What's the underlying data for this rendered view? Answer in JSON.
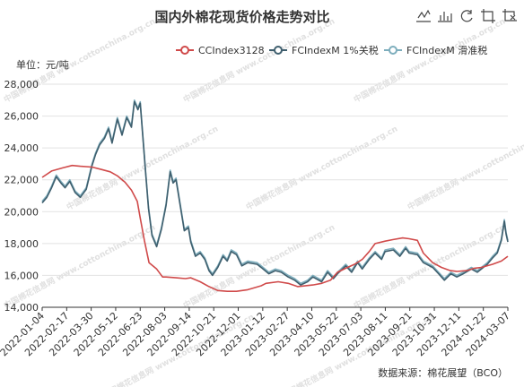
{
  "chart_data": {
    "type": "line",
    "title": "国内外棉花现货价格走势对比",
    "ylabel": "单位：元/吨",
    "ylim": [
      14000,
      28000
    ],
    "yticks": [
      14000,
      16000,
      18000,
      20000,
      22000,
      24000,
      26000,
      28000
    ],
    "ytick_labels": [
      "14,000",
      "16,000",
      "18,000",
      "20,000",
      "22,000",
      "24,000",
      "26,000",
      "28,000"
    ],
    "x_start": "2022-01-04",
    "x_end": "2024-03-07",
    "xtick_labels": [
      "2022-01-04",
      "2022-02-17",
      "2022-03-30",
      "2022-05-12",
      "2022-06-23",
      "2022-08-03",
      "2022-09-14",
      "2022-10-21",
      "2022-12-01",
      "2023-01-12",
      "2023-02-27",
      "2023-04-10",
      "2023-05-22",
      "2023-07-03",
      "2023-08-11",
      "2023-09-21",
      "2023-10-31",
      "2023-12-11",
      "2024-01-22",
      "2024-03-07"
    ],
    "grid": true,
    "legend_position": "top-right",
    "source": "数据来源：棉花展望（BCO）",
    "watermark": "中国棉花信息网 www.cottonchina.org.cn",
    "series": [
      {
        "name": "CCIndex3128",
        "color": "#d04a4a",
        "points": [
          [
            "2022-01-04",
            22150
          ],
          [
            "2022-01-20",
            22550
          ],
          [
            "2022-02-08",
            22750
          ],
          [
            "2022-02-24",
            22900
          ],
          [
            "2022-03-10",
            22850
          ],
          [
            "2022-03-30",
            22800
          ],
          [
            "2022-04-15",
            22650
          ],
          [
            "2022-04-30",
            22500
          ],
          [
            "2022-05-12",
            22250
          ],
          [
            "2022-05-25",
            21850
          ],
          [
            "2022-06-05",
            21350
          ],
          [
            "2022-06-15",
            20650
          ],
          [
            "2022-06-20",
            19600
          ],
          [
            "2022-06-27",
            18200
          ],
          [
            "2022-07-05",
            16800
          ],
          [
            "2022-07-18",
            16400
          ],
          [
            "2022-07-28",
            15900
          ],
          [
            "2022-08-03",
            15900
          ],
          [
            "2022-08-20",
            15850
          ],
          [
            "2022-09-05",
            15800
          ],
          [
            "2022-09-14",
            15850
          ],
          [
            "2022-09-30",
            15600
          ],
          [
            "2022-10-15",
            15300
          ],
          [
            "2022-10-30",
            15050
          ],
          [
            "2022-11-15",
            15000
          ],
          [
            "2022-12-01",
            15000
          ],
          [
            "2022-12-20",
            15100
          ],
          [
            "2023-01-12",
            15350
          ],
          [
            "2023-01-20",
            15500
          ],
          [
            "2023-02-10",
            15600
          ],
          [
            "2023-02-27",
            15500
          ],
          [
            "2023-03-15",
            15300
          ],
          [
            "2023-04-10",
            15400
          ],
          [
            "2023-04-25",
            15500
          ],
          [
            "2023-05-10",
            15700
          ],
          [
            "2023-05-22",
            16200
          ],
          [
            "2023-06-05",
            16450
          ],
          [
            "2023-06-20",
            16700
          ],
          [
            "2023-07-03",
            17000
          ],
          [
            "2023-07-15",
            17500
          ],
          [
            "2023-07-25",
            18000
          ],
          [
            "2023-08-11",
            18150
          ],
          [
            "2023-08-25",
            18250
          ],
          [
            "2023-09-10",
            18350
          ],
          [
            "2023-09-21",
            18300
          ],
          [
            "2023-10-05",
            18200
          ],
          [
            "2023-10-15",
            17400
          ],
          [
            "2023-10-31",
            16800
          ],
          [
            "2023-11-15",
            16500
          ],
          [
            "2023-11-30",
            16300
          ],
          [
            "2023-12-11",
            16250
          ],
          [
            "2023-12-28",
            16300
          ],
          [
            "2024-01-10",
            16450
          ],
          [
            "2024-01-22",
            16500
          ],
          [
            "2024-02-10",
            16700
          ],
          [
            "2024-02-25",
            16900
          ],
          [
            "2024-03-07",
            17200
          ]
        ]
      },
      {
        "name": "FCIndexM 1%关税",
        "color": "#3f5f6e",
        "points": [
          [
            "2022-01-04",
            20550
          ],
          [
            "2022-01-12",
            20900
          ],
          [
            "2022-01-20",
            21500
          ],
          [
            "2022-01-28",
            22200
          ],
          [
            "2022-02-05",
            21800
          ],
          [
            "2022-02-12",
            21500
          ],
          [
            "2022-02-20",
            21900
          ],
          [
            "2022-03-01",
            21200
          ],
          [
            "2022-03-10",
            20900
          ],
          [
            "2022-03-20",
            21400
          ],
          [
            "2022-03-30",
            22900
          ],
          [
            "2022-04-05",
            23600
          ],
          [
            "2022-04-12",
            24200
          ],
          [
            "2022-04-20",
            24600
          ],
          [
            "2022-04-27",
            25200
          ],
          [
            "2022-05-03",
            24300
          ],
          [
            "2022-05-12",
            25800
          ],
          [
            "2022-05-20",
            24800
          ],
          [
            "2022-05-28",
            25900
          ],
          [
            "2022-06-05",
            25300
          ],
          [
            "2022-06-10",
            26900
          ],
          [
            "2022-06-16",
            26400
          ],
          [
            "2022-06-20",
            26800
          ],
          [
            "2022-06-24",
            24900
          ],
          [
            "2022-06-29",
            22500
          ],
          [
            "2022-07-04",
            20200
          ],
          [
            "2022-07-10",
            18500
          ],
          [
            "2022-07-18",
            17800
          ],
          [
            "2022-07-26",
            18900
          ],
          [
            "2022-08-03",
            20400
          ],
          [
            "2022-08-10",
            22500
          ],
          [
            "2022-08-15",
            21800
          ],
          [
            "2022-08-20",
            22000
          ],
          [
            "2022-08-27",
            20400
          ],
          [
            "2022-09-03",
            18800
          ],
          [
            "2022-09-10",
            19000
          ],
          [
            "2022-09-14",
            18100
          ],
          [
            "2022-09-22",
            17200
          ],
          [
            "2022-09-30",
            17400
          ],
          [
            "2022-10-08",
            17000
          ],
          [
            "2022-10-15",
            16300
          ],
          [
            "2022-10-21",
            16000
          ],
          [
            "2022-10-30",
            16500
          ],
          [
            "2022-11-08",
            17200
          ],
          [
            "2022-11-15",
            16900
          ],
          [
            "2022-11-22",
            17500
          ],
          [
            "2022-12-01",
            17300
          ],
          [
            "2022-12-10",
            16600
          ],
          [
            "2022-12-20",
            16800
          ],
          [
            "2023-01-05",
            16700
          ],
          [
            "2023-01-12",
            16500
          ],
          [
            "2023-01-25",
            16100
          ],
          [
            "2023-02-05",
            16300
          ],
          [
            "2023-02-15",
            16200
          ],
          [
            "2023-02-27",
            15900
          ],
          [
            "2023-03-10",
            15700
          ],
          [
            "2023-03-20",
            15400
          ],
          [
            "2023-04-01",
            15600
          ],
          [
            "2023-04-10",
            15900
          ],
          [
            "2023-04-25",
            15600
          ],
          [
            "2023-05-05",
            16200
          ],
          [
            "2023-05-15",
            15800
          ],
          [
            "2023-05-22",
            16100
          ],
          [
            "2023-06-05",
            16600
          ],
          [
            "2023-06-15",
            16200
          ],
          [
            "2023-06-25",
            16800
          ],
          [
            "2023-07-03",
            16400
          ],
          [
            "2023-07-15",
            17000
          ],
          [
            "2023-07-25",
            17400
          ],
          [
            "2023-08-05",
            17000
          ],
          [
            "2023-08-11",
            17500
          ],
          [
            "2023-08-25",
            17600
          ],
          [
            "2023-09-05",
            17200
          ],
          [
            "2023-09-15",
            17700
          ],
          [
            "2023-09-21",
            17400
          ],
          [
            "2023-10-05",
            17300
          ],
          [
            "2023-10-15",
            16800
          ],
          [
            "2023-10-31",
            16500
          ],
          [
            "2023-11-10",
            16100
          ],
          [
            "2023-11-20",
            15700
          ],
          [
            "2023-12-01",
            16100
          ],
          [
            "2023-12-11",
            15900
          ],
          [
            "2023-12-22",
            16100
          ],
          [
            "2024-01-05",
            16400
          ],
          [
            "2024-01-15",
            16200
          ],
          [
            "2024-01-22",
            16400
          ],
          [
            "2024-02-01",
            16700
          ],
          [
            "2024-02-10",
            17100
          ],
          [
            "2024-02-18",
            17400
          ],
          [
            "2024-02-25",
            18200
          ],
          [
            "2024-03-01",
            19400
          ],
          [
            "2024-03-04",
            18600
          ],
          [
            "2024-03-07",
            18100
          ]
        ]
      },
      {
        "name": "FCIndexM 滑准税",
        "color": "#7eaebd",
        "points": [
          [
            "2022-01-04",
            20650
          ],
          [
            "2022-01-12",
            21000
          ],
          [
            "2022-01-20",
            21600
          ],
          [
            "2022-01-28",
            22300
          ],
          [
            "2022-02-05",
            21900
          ],
          [
            "2022-02-12",
            21600
          ],
          [
            "2022-02-20",
            22000
          ],
          [
            "2022-03-01",
            21300
          ],
          [
            "2022-03-10",
            21000
          ],
          [
            "2022-03-20",
            21500
          ],
          [
            "2022-03-30",
            23000
          ],
          [
            "2022-04-05",
            23700
          ],
          [
            "2022-04-12",
            24300
          ],
          [
            "2022-04-20",
            24700
          ],
          [
            "2022-04-27",
            25300
          ],
          [
            "2022-05-03",
            24400
          ],
          [
            "2022-05-12",
            25900
          ],
          [
            "2022-05-20",
            24900
          ],
          [
            "2022-05-28",
            26000
          ],
          [
            "2022-06-05",
            25400
          ],
          [
            "2022-06-10",
            27000
          ],
          [
            "2022-06-16",
            26500
          ],
          [
            "2022-06-20",
            26900
          ],
          [
            "2022-06-24",
            25000
          ],
          [
            "2022-06-29",
            22600
          ],
          [
            "2022-07-04",
            20300
          ],
          [
            "2022-07-10",
            18600
          ],
          [
            "2022-07-18",
            17900
          ],
          [
            "2022-07-26",
            19000
          ],
          [
            "2022-08-03",
            20500
          ],
          [
            "2022-08-10",
            22600
          ],
          [
            "2022-08-15",
            21900
          ],
          [
            "2022-08-20",
            22100
          ],
          [
            "2022-08-27",
            20500
          ],
          [
            "2022-09-03",
            18900
          ],
          [
            "2022-09-10",
            19100
          ],
          [
            "2022-09-14",
            18200
          ],
          [
            "2022-09-22",
            17300
          ],
          [
            "2022-09-30",
            17500
          ],
          [
            "2022-10-08",
            17100
          ],
          [
            "2022-10-15",
            16400
          ],
          [
            "2022-10-21",
            16100
          ],
          [
            "2022-10-30",
            16600
          ],
          [
            "2022-11-08",
            17300
          ],
          [
            "2022-11-15",
            17000
          ],
          [
            "2022-11-22",
            17600
          ],
          [
            "2022-12-01",
            17400
          ],
          [
            "2022-12-10",
            16700
          ],
          [
            "2022-12-20",
            16900
          ],
          [
            "2023-01-05",
            16800
          ],
          [
            "2023-01-12",
            16600
          ],
          [
            "2023-01-25",
            16200
          ],
          [
            "2023-02-05",
            16400
          ],
          [
            "2023-02-15",
            16300
          ],
          [
            "2023-02-27",
            16000
          ],
          [
            "2023-03-10",
            15800
          ],
          [
            "2023-03-20",
            15500
          ],
          [
            "2023-04-01",
            15700
          ],
          [
            "2023-04-10",
            16000
          ],
          [
            "2023-04-25",
            15700
          ],
          [
            "2023-05-05",
            16300
          ],
          [
            "2023-05-15",
            15900
          ],
          [
            "2023-05-22",
            16200
          ],
          [
            "2023-06-05",
            16700
          ],
          [
            "2023-06-15",
            16300
          ],
          [
            "2023-06-25",
            16900
          ],
          [
            "2023-07-03",
            16500
          ],
          [
            "2023-07-15",
            17100
          ],
          [
            "2023-07-25",
            17500
          ],
          [
            "2023-08-05",
            17100
          ],
          [
            "2023-08-11",
            17600
          ],
          [
            "2023-08-25",
            17700
          ],
          [
            "2023-09-05",
            17300
          ],
          [
            "2023-09-15",
            17800
          ],
          [
            "2023-09-21",
            17500
          ],
          [
            "2023-10-05",
            17400
          ],
          [
            "2023-10-15",
            16900
          ],
          [
            "2023-10-31",
            16600
          ],
          [
            "2023-11-10",
            16200
          ],
          [
            "2023-11-20",
            15800
          ],
          [
            "2023-12-01",
            16200
          ],
          [
            "2023-12-11",
            16000
          ],
          [
            "2023-12-22",
            16200
          ],
          [
            "2024-01-05",
            16500
          ],
          [
            "2024-01-15",
            16300
          ],
          [
            "2024-01-22",
            16500
          ],
          [
            "2024-02-01",
            16800
          ],
          [
            "2024-02-10",
            17200
          ],
          [
            "2024-02-18",
            17500
          ],
          [
            "2024-02-25",
            18300
          ],
          [
            "2024-03-01",
            19500
          ],
          [
            "2024-03-04",
            18700
          ],
          [
            "2024-03-07",
            18200
          ]
        ]
      }
    ]
  },
  "toolbar": [
    {
      "name": "line-chart-icon"
    },
    {
      "name": "bar-chart-icon"
    },
    {
      "name": "restore-icon"
    },
    {
      "name": "zoom-icon"
    },
    {
      "name": "zoom-reset-icon"
    }
  ]
}
